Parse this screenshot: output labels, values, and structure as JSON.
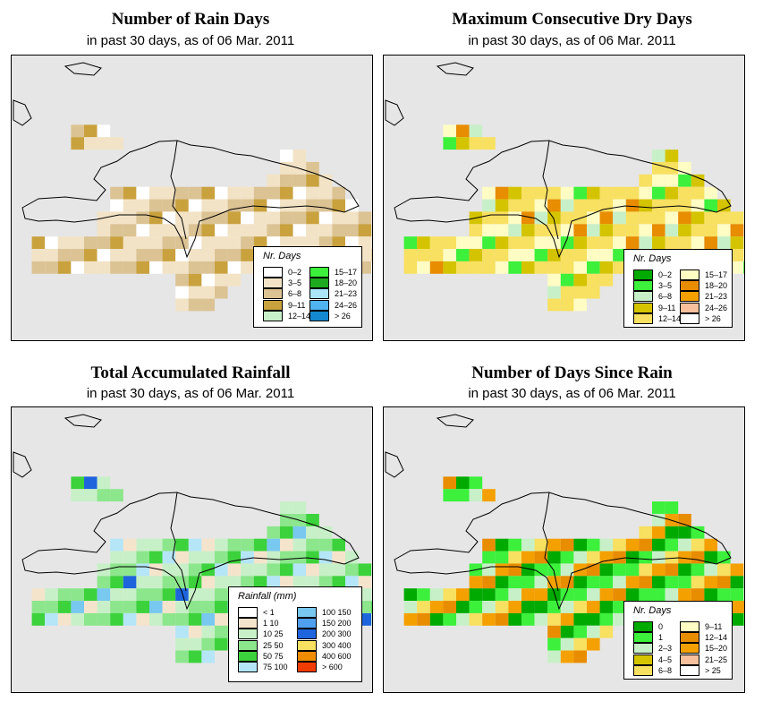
{
  "panels": [
    {
      "title": "Number of Rain Days",
      "subtitle": "in past 30 days, as of  06 Mar. 2011",
      "legend": {
        "title": "Nr. Days",
        "items": [
          {
            "label": "0–2",
            "color": "#ffffff"
          },
          {
            "label": "3–5",
            "color": "#f3e3c6"
          },
          {
            "label": "6–8",
            "color": "#dcc394"
          },
          {
            "label": "9–11",
            "color": "#c9a23e"
          },
          {
            "label": "12–14",
            "color": "#c8f0c8"
          },
          {
            "label": "15–17",
            "color": "#3cf03c"
          },
          {
            "label": "18–20",
            "color": "#1eaa1e"
          },
          {
            "label": "21–23",
            "color": "#aae6f8"
          },
          {
            "label": "24–26",
            "color": "#50b4f0"
          },
          {
            "label": "> 26",
            "color": "#1488d0"
          }
        ]
      }
    },
    {
      "title": "Maximum Consecutive Dry Days",
      "subtitle": "in past 30 days, as of  06 Mar. 2011",
      "legend": {
        "title": "Nr. Days",
        "items": [
          {
            "label": "0–2",
            "color": "#00aa00"
          },
          {
            "label": "3–5",
            "color": "#3cf03c"
          },
          {
            "label": "6–8",
            "color": "#c8f0c8"
          },
          {
            "label": "9–11",
            "color": "#d4c400"
          },
          {
            "label": "12–14",
            "color": "#f8e060"
          },
          {
            "label": "15–17",
            "color": "#fffcc4"
          },
          {
            "label": "18–20",
            "color": "#e88c00"
          },
          {
            "label": "21–23",
            "color": "#f4a000"
          },
          {
            "label": "24–26",
            "color": "#f8c09c"
          },
          {
            "label": "> 26",
            "color": "#ffffff"
          }
        ]
      }
    },
    {
      "title": "Total Accumulated Rainfall",
      "subtitle": "in past 30 days, as of  06 Mar. 2011",
      "legend": {
        "title": "Rainfall (mm)",
        "items": [
          {
            "label": "< 1",
            "color": "#ffffff"
          },
          {
            "label": "1      10",
            "color": "#f5e4cc"
          },
          {
            "label": "10    25",
            "color": "#c8f0c8"
          },
          {
            "label": "25    50",
            "color": "#8ce68c"
          },
          {
            "label": "50    75",
            "color": "#3cd23c"
          },
          {
            "label": "75  100",
            "color": "#b4e6f8"
          },
          {
            "label": "100  150",
            "color": "#78c8f0"
          },
          {
            "label": "150  200",
            "color": "#50a0f0"
          },
          {
            "label": "200  300",
            "color": "#1e64dc"
          },
          {
            "label": "300  400",
            "color": "#f8e060"
          },
          {
            "label": "400  600",
            "color": "#f08c00"
          },
          {
            "label": "> 600",
            "color": "#f03c00"
          }
        ]
      }
    },
    {
      "title": "Number of Days Since Rain",
      "subtitle": "in past 30 days, as of  06 Mar. 2011",
      "legend": {
        "title": "Nr. Days",
        "items": [
          {
            "label": "0",
            "color": "#00aa00"
          },
          {
            "label": "1",
            "color": "#3cf03c"
          },
          {
            "label": "2–3",
            "color": "#c8f0c8"
          },
          {
            "label": "4–5",
            "color": "#d4c400"
          },
          {
            "label": "6–8",
            "color": "#f8e060"
          },
          {
            "label": "9–11",
            "color": "#fffcc4"
          },
          {
            "label": "12–14",
            "color": "#e88c00"
          },
          {
            "label": "15–20",
            "color": "#f4a000"
          },
          {
            "label": "21–25",
            "color": "#f8c09c"
          },
          {
            "label": "> 25",
            "color": "#ffffff"
          }
        ]
      }
    }
  ]
}
